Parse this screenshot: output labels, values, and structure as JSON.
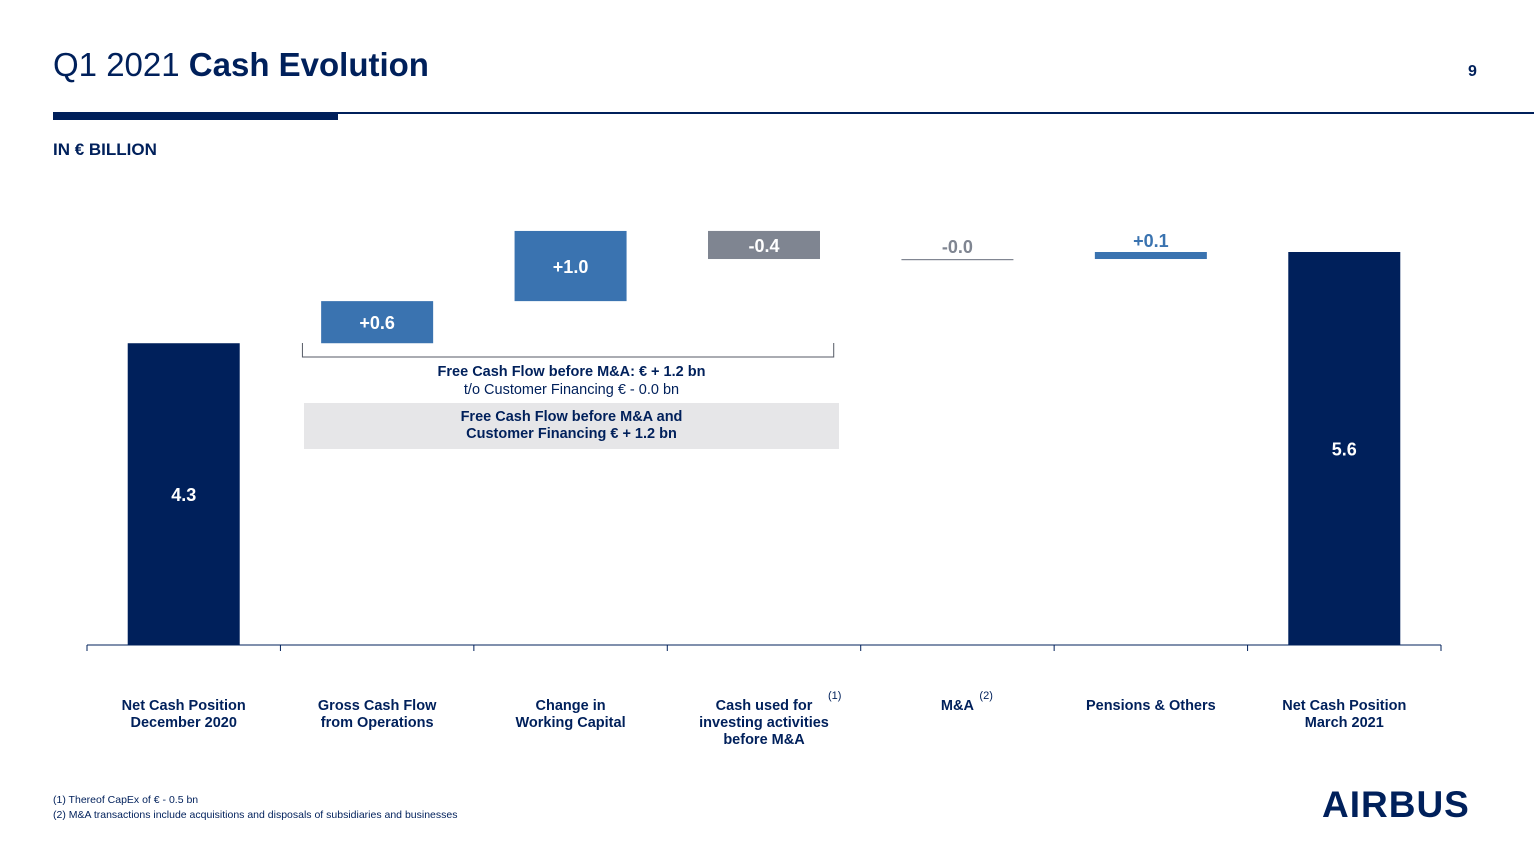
{
  "header": {
    "title_prefix": "Q1 2021",
    "title_bold": "Cash Evolution",
    "page_number": "9",
    "units": "IN € BILLION"
  },
  "chart_data": {
    "type": "waterfall",
    "unit": "€ billion",
    "categories": [
      "Net Cash Position\nDecember 2020",
      "Gross Cash Flow\nfrom Operations",
      "Change in\nWorking Capital",
      "Cash used for\ninvesting activities\nbefore M&A",
      "M&A",
      "Pensions & Others",
      "Net Cash Position\nMarch 2021"
    ],
    "category_footnotes": [
      "",
      "",
      "",
      "(1)",
      "(2)",
      "",
      ""
    ],
    "values": [
      4.3,
      0.6,
      1.0,
      -0.4,
      -0.0,
      0.1,
      5.6
    ],
    "labels": [
      "4.3",
      "+0.6",
      "+1.0",
      "-0.4",
      "-0.0",
      "+0.1",
      "5.6"
    ],
    "kinds": [
      "total",
      "delta",
      "delta",
      "delta",
      "delta",
      "delta",
      "total"
    ],
    "colors": {
      "total": "#00205b",
      "increase": "#3a73b0",
      "decrease": "#7f8591",
      "neutral_label": "#7f8591",
      "label_on_bar": "#ffffff",
      "label_above": "#3a73b0"
    },
    "ylim": [
      0,
      6.3
    ],
    "annotations": {
      "fcf_line1": "Free Cash Flow before M&A: € + 1.2 bn",
      "fcf_line2": "t/o Customer Financing € - 0.0 bn",
      "fcf_box": "Free Cash Flow before M&A and\nCustomer Financing € + 1.2 bn"
    }
  },
  "footnotes": [
    "(1) Thereof CapEx of € - 0.5 bn",
    "(2) M&A transactions include acquisitions and disposals of subsidiaries and businesses"
  ],
  "logo": "AIRBUS"
}
